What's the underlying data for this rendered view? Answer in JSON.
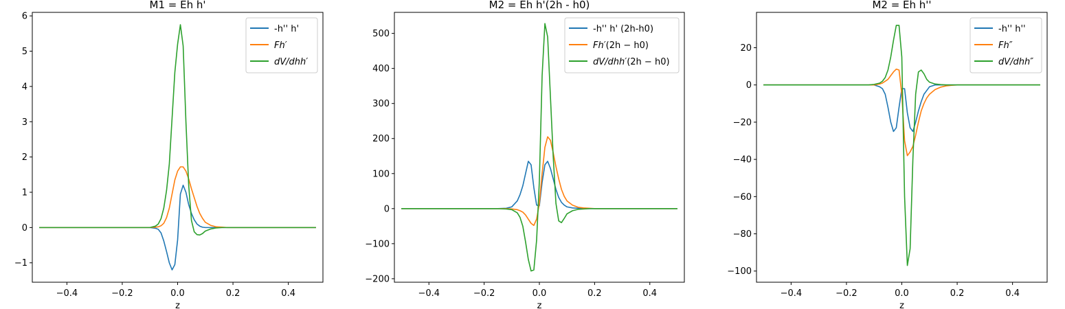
{
  "chart_data": [
    {
      "type": "line",
      "title": "M1 = Eh h'",
      "xlabel": "z",
      "ylabel": "",
      "xlim": [
        -0.525,
        0.525
      ],
      "ylim": [
        -1.55,
        6.1
      ],
      "xticks": [
        -0.4,
        -0.2,
        0.0,
        0.2,
        0.4
      ],
      "xtick_labels": [
        "−0.4",
        "−0.2",
        "0.0",
        "0.2",
        "0.4"
      ],
      "yticks": [
        -1,
        0,
        1,
        2,
        3,
        4,
        5,
        6
      ],
      "ytick_labels": [
        "−1",
        "0",
        "1",
        "2",
        "3",
        "4",
        "5",
        "6"
      ],
      "grid": false,
      "legend": "top-right",
      "x": [
        -0.5,
        -0.1,
        -0.08,
        -0.07,
        -0.06,
        -0.05,
        -0.04,
        -0.03,
        -0.02,
        -0.01,
        0.0,
        0.01,
        0.02,
        0.03,
        0.04,
        0.05,
        0.06,
        0.07,
        0.08,
        0.09,
        0.1,
        0.12,
        0.14,
        0.16,
        0.18,
        0.2,
        0.5
      ],
      "series": [
        {
          "name": "-h'' h'",
          "color": "#1f77b4",
          "values": [
            0,
            0,
            -0.02,
            -0.05,
            -0.15,
            -0.38,
            -0.68,
            -1.0,
            -1.2,
            -1.05,
            -0.35,
            0.95,
            1.2,
            1.0,
            0.65,
            0.4,
            0.22,
            0.1,
            0.04,
            0.01,
            0,
            0,
            0,
            0,
            0,
            0,
            0
          ]
        },
        {
          "name": "Fh′",
          "color": "#ff7f0e",
          "values": [
            0,
            0,
            0.01,
            0.02,
            0.05,
            0.12,
            0.28,
            0.55,
            0.95,
            1.35,
            1.6,
            1.72,
            1.72,
            1.6,
            1.38,
            1.1,
            0.85,
            0.6,
            0.4,
            0.26,
            0.15,
            0.06,
            0.02,
            0.01,
            0,
            0,
            0
          ]
        },
        {
          "name": "dV/dhh′",
          "color": "#2ca02c",
          "values": [
            0,
            0,
            0.04,
            0.1,
            0.25,
            0.55,
            1.05,
            1.8,
            3.1,
            4.4,
            5.2,
            5.75,
            5.15,
            3.0,
            1.2,
            0.2,
            -0.12,
            -0.2,
            -0.21,
            -0.17,
            -0.1,
            -0.04,
            -0.01,
            0,
            0,
            0,
            0
          ]
        }
      ]
    },
    {
      "type": "line",
      "title": "M2 = Eh h'(2h - h0)",
      "xlabel": "z",
      "ylabel": "",
      "xlim": [
        -0.525,
        0.525
      ],
      "ylim": [
        -210,
        560
      ],
      "xticks": [
        -0.4,
        -0.2,
        0.0,
        0.2,
        0.4
      ],
      "xtick_labels": [
        "−0.4",
        "−0.2",
        "0.0",
        "0.2",
        "0.4"
      ],
      "yticks": [
        -200,
        -100,
        0,
        100,
        200,
        300,
        400,
        500
      ],
      "ytick_labels": [
        "−200",
        "−100",
        "0",
        "100",
        "200",
        "300",
        "400",
        "500"
      ],
      "grid": false,
      "legend": "top-right",
      "x": [
        -0.5,
        -0.15,
        -0.12,
        -0.1,
        -0.08,
        -0.07,
        -0.06,
        -0.05,
        -0.04,
        -0.03,
        -0.02,
        -0.01,
        0.0,
        0.01,
        0.02,
        0.03,
        0.04,
        0.05,
        0.06,
        0.07,
        0.08,
        0.09,
        0.1,
        0.12,
        0.14,
        0.16,
        0.18,
        0.2,
        0.25,
        0.5
      ],
      "series": [
        {
          "name": "-h'' h' (2h-h0)",
          "color": "#1f77b4",
          "values": [
            0,
            0,
            1,
            5,
            22,
            40,
            65,
            100,
            135,
            125,
            60,
            10,
            8,
            75,
            125,
            135,
            115,
            85,
            55,
            32,
            18,
            10,
            5,
            2,
            1,
            0,
            0,
            0,
            0,
            0
          ]
        },
        {
          "name": "Fh′(2h − h0)",
          "color": "#ff7f0e",
          "values": [
            0,
            0,
            0,
            -1,
            -3,
            -6,
            -10,
            -18,
            -30,
            -42,
            -48,
            -30,
            15,
            100,
            175,
            205,
            195,
            160,
            120,
            85,
            55,
            35,
            22,
            10,
            4,
            2,
            1,
            0,
            0,
            0
          ]
        },
        {
          "name": "dV/dhh′(2h − h0)",
          "color": "#2ca02c",
          "values": [
            0,
            0,
            -1,
            -3,
            -12,
            -25,
            -50,
            -95,
            -145,
            -178,
            -175,
            -90,
            80,
            380,
            528,
            490,
            320,
            150,
            15,
            -35,
            -40,
            -28,
            -15,
            -6,
            -2,
            -1,
            0,
            0,
            0,
            0
          ]
        }
      ]
    },
    {
      "type": "line",
      "title": "M2 = Eh h''",
      "xlabel": "z",
      "ylabel": "",
      "xlim": [
        -0.525,
        0.525
      ],
      "ylim": [
        -106,
        39
      ],
      "xticks": [
        -0.4,
        -0.2,
        0.0,
        0.2,
        0.4
      ],
      "xtick_labels": [
        "−0.4",
        "−0.2",
        "0.0",
        "0.2",
        "0.4"
      ],
      "yticks": [
        -100,
        -80,
        -60,
        -40,
        -20,
        0,
        20
      ],
      "ytick_labels": [
        "−100",
        "−80",
        "−60",
        "−40",
        "−20",
        "0",
        "20"
      ],
      "grid": false,
      "legend": "top-right",
      "x": [
        -0.5,
        -0.15,
        -0.12,
        -0.1,
        -0.08,
        -0.07,
        -0.06,
        -0.05,
        -0.04,
        -0.03,
        -0.02,
        -0.01,
        0.0,
        0.01,
        0.02,
        0.03,
        0.04,
        0.05,
        0.06,
        0.07,
        0.08,
        0.09,
        0.1,
        0.12,
        0.14,
        0.16,
        0.18,
        0.2,
        0.25,
        0.5
      ],
      "series": [
        {
          "name": "-h'' h''",
          "color": "#1f77b4",
          "values": [
            0,
            0,
            0,
            0,
            -1,
            -2,
            -5,
            -12,
            -20,
            -25,
            -23,
            -12,
            -2,
            -2,
            -15,
            -23,
            -25,
            -20,
            -14,
            -9,
            -5,
            -3,
            -1,
            0,
            0,
            0,
            0,
            0,
            0,
            0
          ]
        },
        {
          "name": "Fh″",
          "color": "#ff7f0e",
          "values": [
            0,
            0,
            0,
            0,
            0.5,
            1,
            2,
            3,
            5,
            7,
            8.5,
            8,
            -5,
            -30,
            -38,
            -36,
            -33,
            -27,
            -20,
            -14,
            -10,
            -7,
            -5,
            -2.5,
            -1.2,
            -0.5,
            -0.2,
            0,
            0,
            0
          ]
        },
        {
          "name": "dV/dhh″",
          "color": "#2ca02c",
          "values": [
            0,
            0,
            0,
            0.3,
            1,
            2,
            4,
            8,
            15,
            24,
            32,
            32,
            15,
            -60,
            -97,
            -88,
            -40,
            -5,
            7,
            8,
            6,
            3,
            1.5,
            0.5,
            0.2,
            0,
            0,
            0,
            0,
            0
          ]
        }
      ]
    }
  ]
}
